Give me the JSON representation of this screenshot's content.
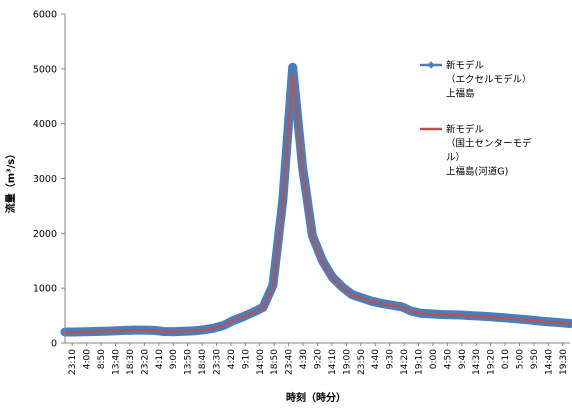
{
  "chart_data": {
    "type": "line",
    "xlabel": "時刻（時分）",
    "ylabel": "流量（m³/s）",
    "ylim": [
      0,
      6000
    ],
    "yticks": [
      0,
      1000,
      2000,
      3000,
      4000,
      5000,
      6000
    ],
    "x_tick_labels": [
      "23:10",
      "4:00",
      "8:50",
      "13:40",
      "18:30",
      "23:20",
      "4:10",
      "9:00",
      "13:50",
      "18:40",
      "23:30",
      "4:20",
      "9:10",
      "14:00",
      "18:50",
      "23:40",
      "4:30",
      "9:20",
      "14:10",
      "19:00",
      "23:50",
      "4:40",
      "9:30",
      "14:20",
      "19:10",
      "0:00",
      "4:50",
      "9:40",
      "14:30",
      "19:20",
      "0:10",
      "5:00",
      "9:50",
      "14:40",
      "19:30"
    ],
    "grid": false,
    "legend_position": "right",
    "series": [
      {
        "name": "新モデル\n（エクセルモデル）\n上福島",
        "color": "#4a7ebb",
        "marker": "diamond",
        "values": [
          200,
          200,
          205,
          210,
          215,
          220,
          230,
          235,
          235,
          230,
          210,
          205,
          215,
          220,
          240,
          270,
          320,
          410,
          480,
          560,
          650,
          1050,
          2600,
          5030,
          3200,
          1950,
          1500,
          1200,
          1020,
          880,
          820,
          760,
          720,
          690,
          660,
          580,
          540,
          530,
          520,
          515,
          510,
          500,
          490,
          480,
          465,
          450,
          435,
          420,
          400,
          385,
          370,
          355
        ]
      },
      {
        "name": "新モデル\n（国土センターモデ\nル）\n上福島(河道G)",
        "color": "#c0504d",
        "marker": "none",
        "values": [
          200,
          200,
          205,
          210,
          215,
          220,
          230,
          235,
          235,
          230,
          210,
          205,
          215,
          220,
          240,
          270,
          320,
          410,
          480,
          560,
          640,
          1010,
          2500,
          4900,
          3150,
          1920,
          1480,
          1190,
          1010,
          870,
          815,
          755,
          715,
          685,
          655,
          575,
          535,
          525,
          515,
          510,
          505,
          495,
          485,
          475,
          460,
          445,
          430,
          415,
          395,
          380,
          365,
          350
        ]
      }
    ]
  }
}
